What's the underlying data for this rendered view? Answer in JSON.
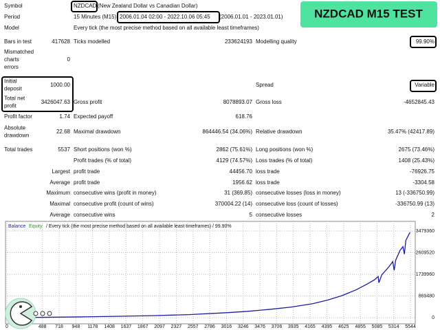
{
  "header": {
    "title": "NZDCAD M15 TEST"
  },
  "report": {
    "rows": [
      [
        "Symbol",
        "NZDCAD",
        "(New Zealand Dollar vs Canadian Dollar)"
      ],
      [
        "Period",
        "15 Minutes (M15)",
        "2006.01.04 02:00 - 2022.10.06 05:45",
        "(2006.01.01 - 2023.01.01)"
      ],
      [
        "Model",
        "Every tick (the most precise method based on all available least timeframes)"
      ],
      [
        "Bars in test",
        "417628",
        "Ticks modelled",
        "233624193",
        "Modelling quality",
        "99.90%"
      ],
      [
        [
          "Mismatched",
          "charts",
          "errors"
        ],
        "0"
      ],
      [
        [
          "Initial",
          "deposit"
        ],
        "1000.00",
        "Spread",
        "Variable"
      ],
      [
        [
          "Total net",
          "profit"
        ],
        "3426047.63",
        "Gross profit",
        "8078893.07",
        "Gross loss",
        "-4652845.43"
      ],
      [
        "Profit factor",
        "1.74",
        "Expected payoff",
        "618.76"
      ],
      [
        [
          "Absolute",
          "drawdown"
        ],
        "22.68",
        "Maximal drawdown",
        "864446.54 (34.06%)",
        "Relative drawdown",
        "35.47% (42417.89)"
      ],
      [
        "Total trades",
        "5537",
        "Short positions (won %)",
        "2862 (75.61%)",
        "Long positions (won %)",
        "2675 (73.46%)"
      ],
      [
        "Profit trades (% of total)",
        "4129 (74.57%)",
        "Loss trades (% of total)",
        "1408 (25.43%)"
      ],
      [
        "Largest",
        "profit trade",
        "44456.70",
        "loss trade",
        "-76926.75"
      ],
      [
        "Average",
        "profit trade",
        "1956.62",
        "loss trade",
        "-3304.58"
      ],
      [
        "Maximum",
        "consecutive wins (profit in money)",
        "31 (369.85)",
        "consecutive losses (loss in money)",
        "13 (-336750.99)"
      ],
      [
        "Maximal",
        "consecutive profit (count of wins)",
        "370004.22 (14)",
        "consecutive loss (count of losses)",
        "-336750.99 (13)"
      ],
      [
        "Average",
        "consecutive wins",
        "5",
        "consecutive losses",
        "2"
      ]
    ]
  },
  "chart_data": {
    "type": "line",
    "legend": [
      "Balance",
      "Equity"
    ],
    "subtitle": "/ Every tick (the most precise method based on all available least timeframes) / 99.90%",
    "x": [
      0,
      500,
      1000,
      1500,
      2000,
      2500,
      3000,
      3300,
      3600,
      3900,
      4200,
      4400,
      4600,
      4800,
      4950,
      5050,
      5100,
      5110,
      5150,
      5250,
      5300,
      5320,
      5340,
      5400,
      5440,
      5460,
      5480,
      5537
    ],
    "series": [
      {
        "name": "Balance",
        "color": "#1a1aa0",
        "values": [
          1000,
          12000,
          30000,
          52000,
          80000,
          120000,
          195000,
          250000,
          330000,
          420000,
          560000,
          700000,
          880000,
          1120000,
          1350000,
          1520000,
          1650000,
          1400000,
          1720000,
          2050000,
          2250000,
          1900000,
          2300000,
          2700000,
          2850000,
          2550000,
          3100000,
          3427000
        ]
      }
    ],
    "legend_colors": [
      "#1a1aa0",
      "#1aa01a"
    ],
    "xlim": [
      0,
      5600
    ],
    "xticks": [
      0,
      488,
      718,
      948,
      1178,
      1408,
      1637,
      1867,
      2097,
      2327,
      2557,
      2786,
      3016,
      3246,
      3476,
      3706,
      3935,
      4165,
      4395,
      4625,
      4855,
      5085,
      5314,
      5544
    ],
    "ylim": [
      0,
      3479360
    ],
    "yticks": [
      0,
      869480,
      1739960,
      2609520,
      3479360
    ],
    "grid": true
  }
}
